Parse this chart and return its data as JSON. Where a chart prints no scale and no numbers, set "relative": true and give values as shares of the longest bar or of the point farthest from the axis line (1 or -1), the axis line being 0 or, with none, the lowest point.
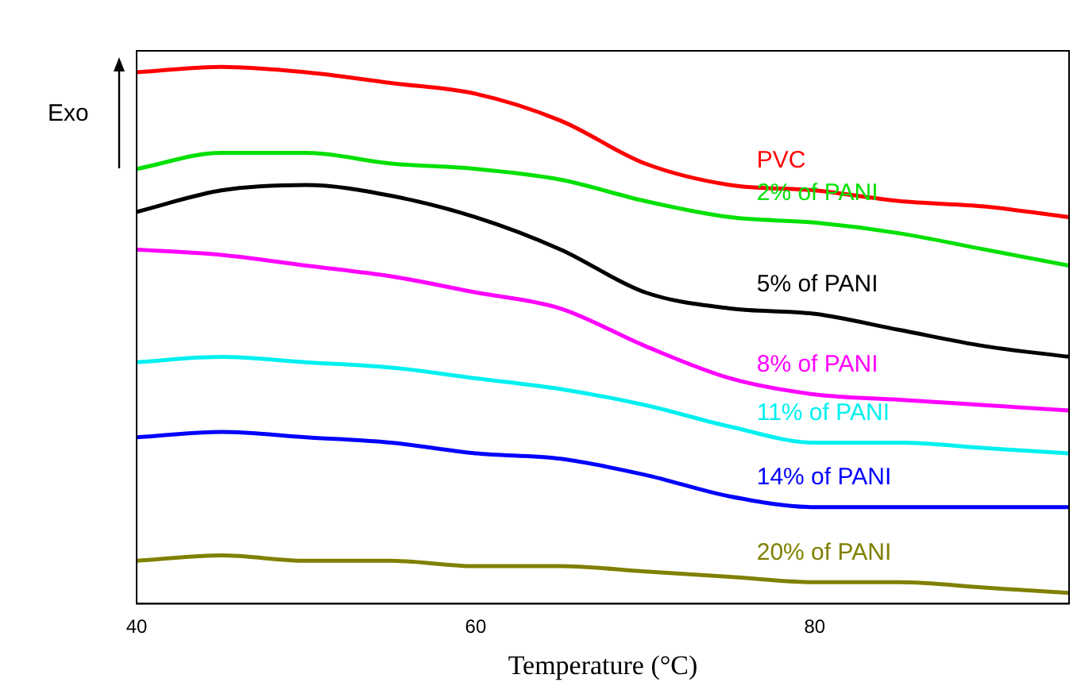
{
  "chart_data": {
    "type": "line",
    "relative": true,
    "xlabel": "Temperature (°C)",
    "ylabel": "Exo",
    "xlim": [
      40,
      95
    ],
    "xticks": [
      40,
      60,
      80
    ],
    "marker": "none",
    "line_style": "solid",
    "legend": false,
    "x": [
      40,
      45,
      50,
      55,
      60,
      65,
      70,
      75,
      80,
      85,
      90,
      95
    ],
    "series": [
      {
        "name": "PVC",
        "color": "#ff0000",
        "values": [
          0.99,
          1.0,
          0.99,
          0.97,
          0.95,
          0.9,
          0.82,
          0.78,
          0.77,
          0.75,
          0.74,
          0.72
        ]
      },
      {
        "name": "2% of PANI",
        "color": "#00e000",
        "values": [
          0.81,
          0.84,
          0.84,
          0.82,
          0.81,
          0.79,
          0.75,
          0.72,
          0.71,
          0.69,
          0.66,
          0.63
        ]
      },
      {
        "name": "5% of PANI",
        "color": "#000000",
        "values": [
          0.73,
          0.77,
          0.78,
          0.76,
          0.72,
          0.66,
          0.58,
          0.55,
          0.54,
          0.51,
          0.48,
          0.46
        ]
      },
      {
        "name": "8% of PANI",
        "color": "#ff00ff",
        "values": [
          0.66,
          0.65,
          0.63,
          0.61,
          0.58,
          0.55,
          0.48,
          0.42,
          0.39,
          0.38,
          0.37,
          0.36
        ]
      },
      {
        "name": "11% of PANI",
        "color": "#00f0f0",
        "values": [
          0.45,
          0.46,
          0.45,
          0.44,
          0.42,
          0.4,
          0.37,
          0.33,
          0.3,
          0.3,
          0.29,
          0.28
        ]
      },
      {
        "name": "14% of PANI",
        "color": "#0000ff",
        "values": [
          0.31,
          0.32,
          0.31,
          0.3,
          0.28,
          0.27,
          0.24,
          0.2,
          0.18,
          0.18,
          0.18,
          0.18
        ]
      },
      {
        "name": "20% of PANI",
        "color": "#808000",
        "values": [
          0.08,
          0.09,
          0.08,
          0.08,
          0.07,
          0.07,
          0.06,
          0.05,
          0.04,
          0.04,
          0.03,
          0.02
        ]
      }
    ]
  }
}
